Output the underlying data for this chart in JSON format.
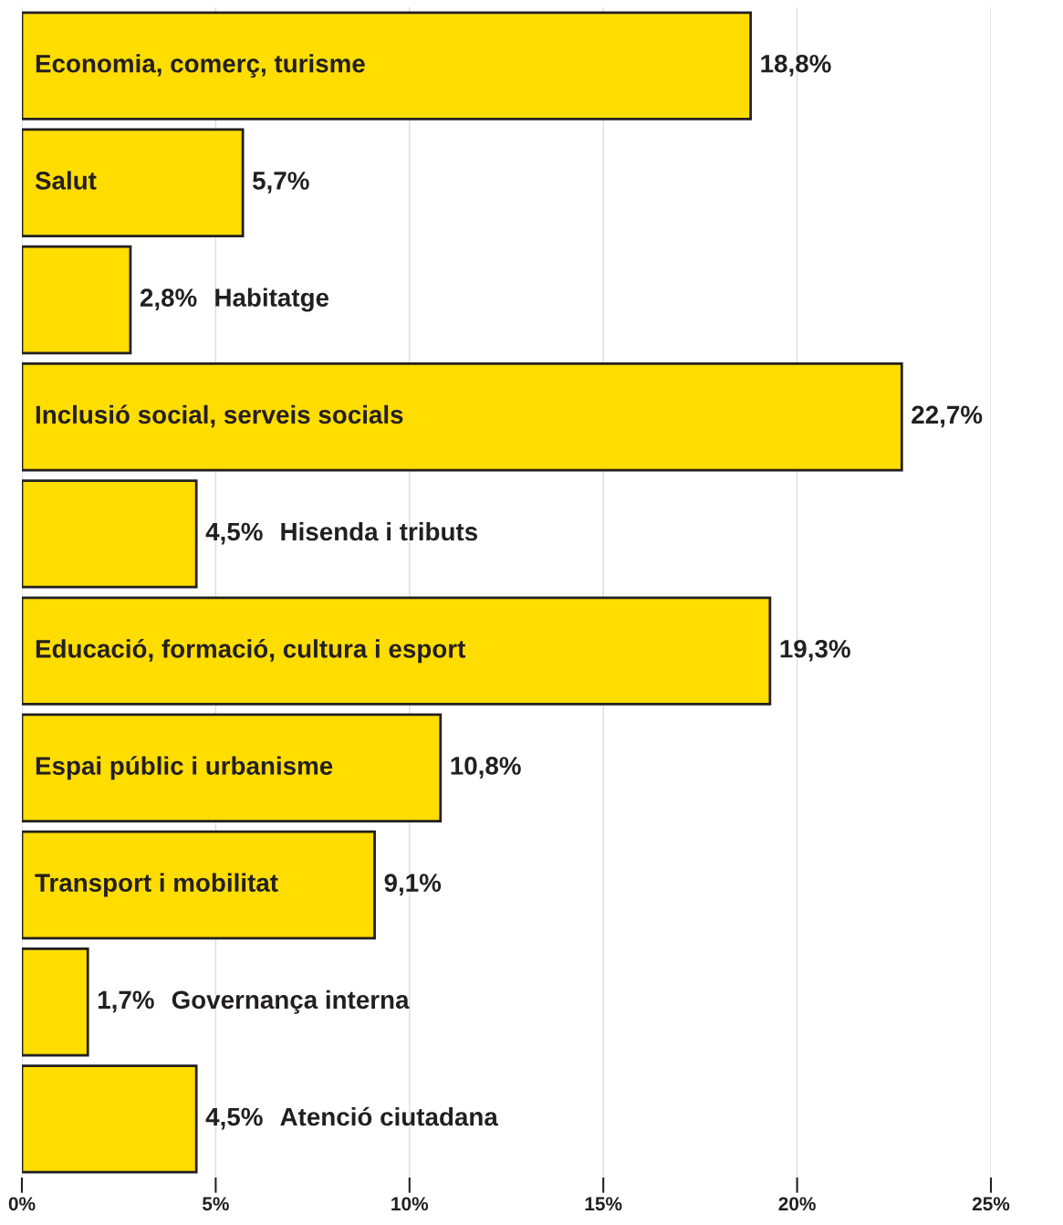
{
  "chart_data": {
    "type": "bar",
    "orientation": "horizontal",
    "categories": [
      "Economia, comerç, turisme",
      "Salut",
      "Habitatge",
      "Inclusió social, serveis socials",
      "Hisenda i tributs",
      "Educació, formació, cultura i esport",
      "Espai públic i urbanisme",
      "Transport i mobilitat",
      "Governança interna",
      "Atenció ciutadana"
    ],
    "values": [
      18.8,
      5.7,
      2.8,
      22.7,
      4.5,
      19.3,
      10.8,
      9.1,
      1.7,
      4.5
    ],
    "value_labels": [
      "18,8%",
      "5,7%",
      "2,8%",
      "22,7%",
      "4,5%",
      "19,3%",
      "10,8%",
      "9,1%",
      "1,7%",
      "4,5%"
    ],
    "color": "#ffdd00",
    "xlim": [
      0,
      25
    ],
    "xticks": [
      {
        "value": 0,
        "label": "0%"
      },
      {
        "value": 5,
        "label": "5%"
      },
      {
        "value": 10,
        "label": "10%"
      },
      {
        "value": 15,
        "label": "15%"
      },
      {
        "value": 20,
        "label": "20%"
      },
      {
        "value": 25,
        "label": "25%"
      }
    ],
    "grid": "x",
    "legend": false
  }
}
